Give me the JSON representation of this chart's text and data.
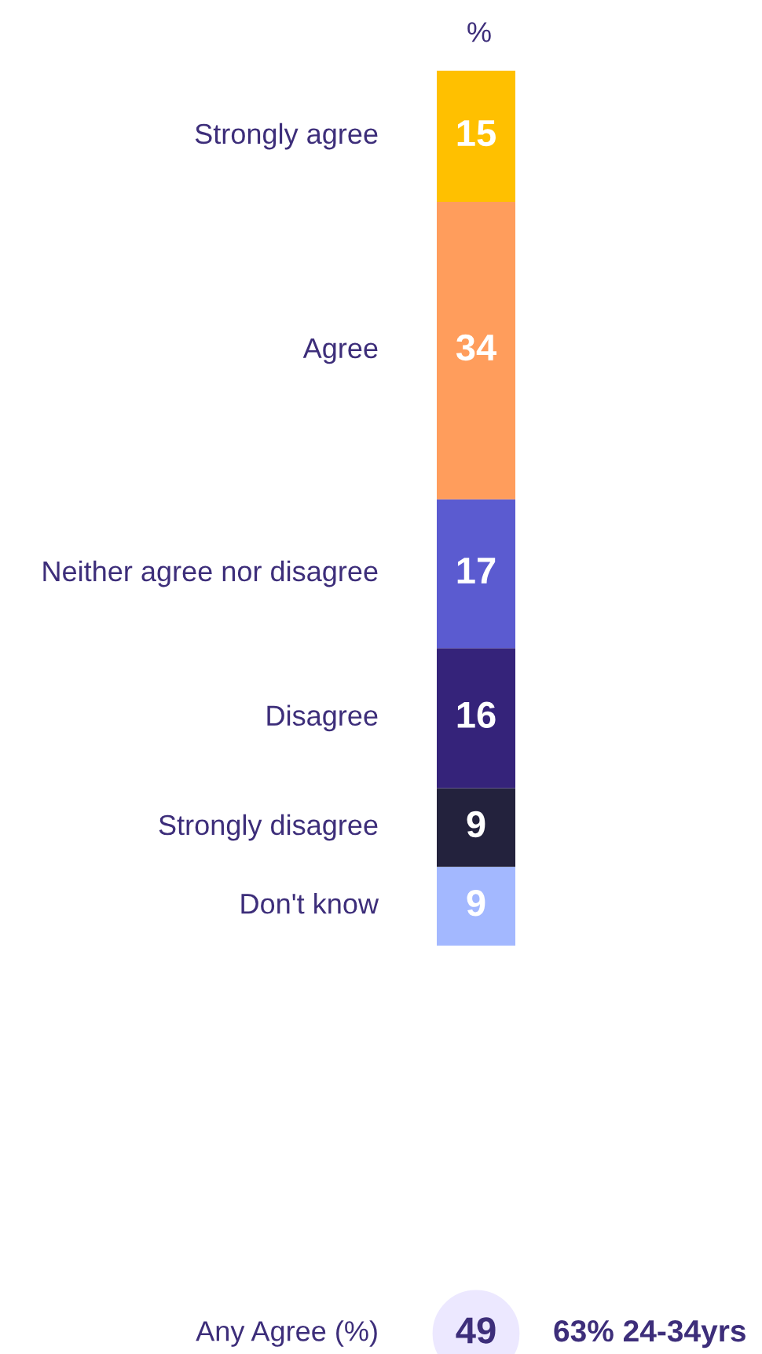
{
  "chart_data": {
    "type": "bar",
    "stacked": true,
    "title": "%",
    "categories": [
      null
    ],
    "data_labels": true,
    "series": [
      {
        "name": "Don't know",
        "color": "#a3b8ff",
        "values": [
          9
        ]
      },
      {
        "name": "Strongly disagree",
        "color": "#23223d",
        "values": [
          9
        ]
      },
      {
        "name": "Disagree",
        "color": "#35237a",
        "values": [
          16
        ]
      },
      {
        "name": "Neither agree nor disagree",
        "color": "#5b5bd0",
        "values": [
          17
        ]
      },
      {
        "name": "Agree",
        "color": "#ff9d5c",
        "values": [
          34
        ]
      },
      {
        "name": "Strongly agree",
        "color": "#ffc000",
        "values": [
          15
        ]
      }
    ],
    "annotations": [
      "Any Agree (%)",
      "49",
      "63% 24-34yrs"
    ]
  }
}
